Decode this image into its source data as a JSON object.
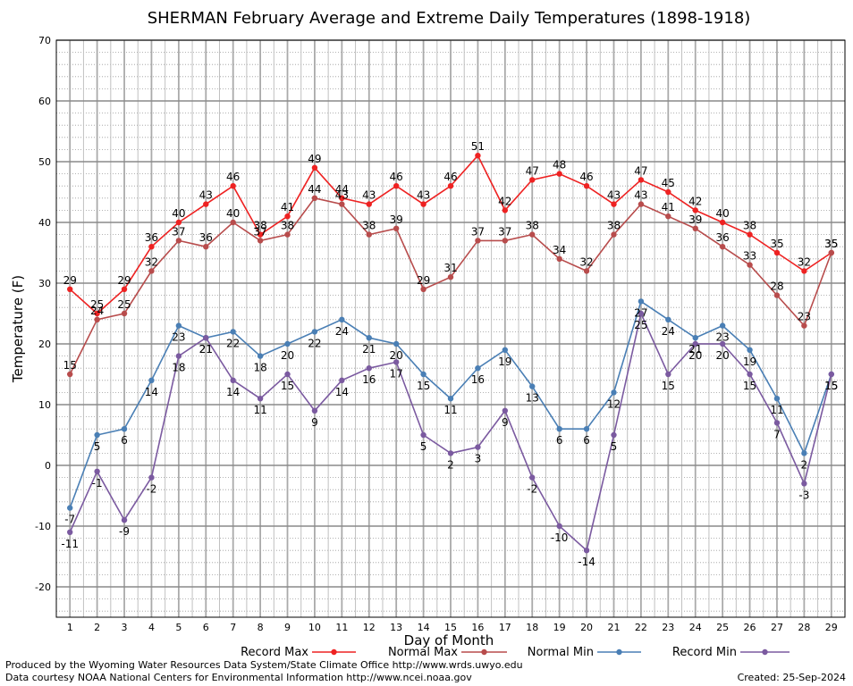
{
  "chart_data": {
    "type": "line",
    "title": "SHERMAN February Average and Extreme Daily Temperatures (1898-1918)",
    "xlabel": "Day of Month",
    "ylabel": "Temperature (F)",
    "ylim": [
      -25,
      70
    ],
    "xlim": [
      0.5,
      29.5
    ],
    "y_ticks": [
      -20,
      -10,
      0,
      10,
      20,
      30,
      40,
      50,
      60,
      70
    ],
    "x": [
      1,
      2,
      3,
      4,
      5,
      6,
      7,
      8,
      9,
      10,
      11,
      12,
      13,
      14,
      15,
      16,
      17,
      18,
      19,
      20,
      21,
      22,
      23,
      24,
      25,
      26,
      27,
      28,
      29
    ],
    "grid": true,
    "legend_position": "bottom",
    "series": [
      {
        "name": "Record Max",
        "color": "#ee2222",
        "values": [
          29,
          25,
          29,
          36,
          40,
          43,
          46,
          38,
          41,
          49,
          44,
          43,
          46,
          43,
          46,
          51,
          42,
          47,
          48,
          46,
          43,
          47,
          45,
          42,
          40,
          38,
          35,
          32,
          35
        ]
      },
      {
        "name": "Normal Max",
        "color": "#b84c4c",
        "values": [
          15,
          24,
          25,
          32,
          37,
          36,
          40,
          37,
          38,
          44,
          43,
          38,
          39,
          29,
          31,
          37,
          37,
          38,
          34,
          32,
          38,
          43,
          41,
          39,
          36,
          33,
          28,
          23,
          35
        ]
      },
      {
        "name": "Normal Min",
        "color": "#4a7fb5",
        "values": [
          -7,
          5,
          6,
          14,
          23,
          21,
          22,
          18,
          20,
          22,
          24,
          21,
          20,
          15,
          11,
          16,
          19,
          13,
          6,
          6,
          12,
          27,
          24,
          21,
          23,
          19,
          11,
          2,
          15
        ]
      },
      {
        "name": "Record Min",
        "color": "#7b5aa0",
        "values": [
          -11,
          -1,
          -9,
          -2,
          18,
          21,
          14,
          11,
          15,
          9,
          14,
          16,
          17,
          5,
          2,
          3,
          9,
          -2,
          -10,
          -14,
          5,
          25,
          15,
          20,
          20,
          15,
          7,
          -3,
          15
        ]
      }
    ]
  },
  "footer": {
    "produced_by": "Produced by the Wyoming Water Resources Data System/State Climate Office http://www.wrds.uwyo.edu",
    "courtesy": "Data courtesy NOAA National Centers for Environmental Information http://www.ncei.noaa.gov",
    "created": "Created:  25-Sep-2024"
  }
}
